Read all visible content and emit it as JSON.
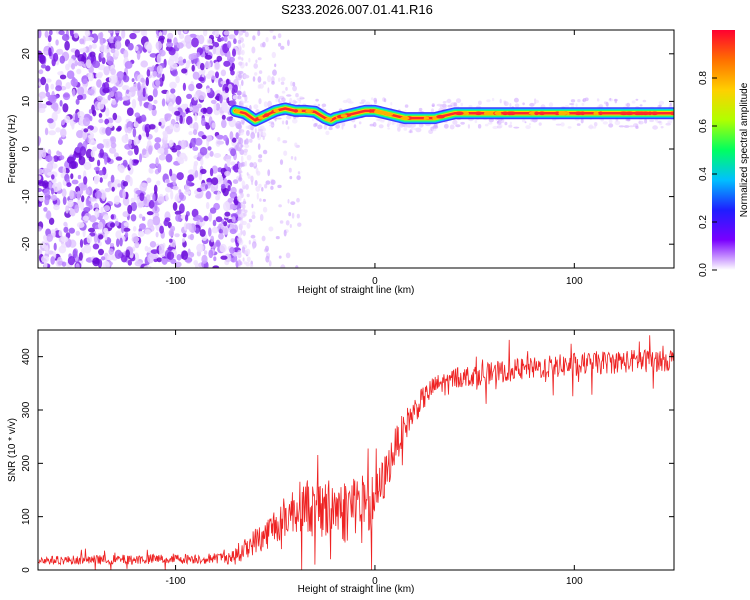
{
  "title": "S233.2026.007.01.41.R16",
  "chart_data": [
    {
      "type": "heatmap",
      "name": "dynamic-spectrum",
      "xlabel": "Height of straight line (km)",
      "ylabel": "Frequency (Hz)",
      "xlim": [
        -169,
        150
      ],
      "ylim": [
        -25,
        25
      ],
      "x_ticks": [
        -100,
        0,
        100
      ],
      "x_tick_labels": [
        "-100",
        "0",
        "100"
      ],
      "y_ticks": [
        -20,
        -10,
        0,
        10,
        20
      ],
      "y_tick_labels": [
        "-20",
        "-10",
        "0",
        "10",
        "20"
      ],
      "noise_region_x": [
        -169,
        -68
      ],
      "signal_start_x": -70,
      "tone_trace": {
        "x": [
          -70,
          -65,
          -60,
          -55,
          -50,
          -45,
          -40,
          -35,
          -30,
          -25,
          -22,
          -20,
          -15,
          -10,
          -5,
          0,
          5,
          10,
          15,
          20,
          25,
          30,
          35,
          40,
          50,
          60,
          70,
          80,
          90,
          100,
          110,
          120,
          130,
          140,
          150
        ],
        "y": [
          8,
          7.5,
          6,
          7,
          8,
          8.5,
          8,
          8,
          7.8,
          6.5,
          6,
          6.5,
          7,
          7.5,
          8,
          8,
          7.5,
          7,
          6.5,
          6.5,
          6.5,
          6.5,
          7,
          7.5,
          7.5,
          7.5,
          7.5,
          7.5,
          7.5,
          7.5,
          7.5,
          7.5,
          7.5,
          7.5,
          7.5
        ]
      }
    },
    {
      "type": "colorbar",
      "name": "amplitude-colorbar",
      "label": "Normalized spectral amplitude",
      "range": [
        0,
        1
      ],
      "ticks": [
        0.0,
        0.2,
        0.4,
        0.6,
        0.8
      ],
      "tick_labels": [
        "0.0",
        "0.2",
        "0.4",
        "0.6",
        "0.8"
      ],
      "colors": [
        "#ffffff",
        "#7a00ff",
        "#1e1eff",
        "#00c0ff",
        "#00ff60",
        "#b0ff00",
        "#ffd000",
        "#ff7000",
        "#ff0030"
      ]
    },
    {
      "type": "line",
      "name": "snr-profile",
      "xlabel": "Height of straight line (km)",
      "ylabel": "SNR (10 * v/v)",
      "xlim": [
        -169,
        150
      ],
      "ylim": [
        0,
        450
      ],
      "x_ticks": [
        -100,
        0,
        100
      ],
      "x_tick_labels": [
        "-100",
        "0",
        "100"
      ],
      "y_ticks": [
        0,
        100,
        200,
        300,
        400
      ],
      "y_tick_labels": [
        "0",
        "100",
        "200",
        "300",
        "400"
      ],
      "color": "#ee2222",
      "envelope": {
        "x": [
          -169,
          -120,
          -80,
          -70,
          -65,
          -60,
          -55,
          -50,
          -45,
          -40,
          -35,
          -30,
          -25,
          -20,
          -15,
          -10,
          -5,
          0,
          5,
          10,
          15,
          20,
          25,
          30,
          40,
          50,
          60,
          70,
          80,
          90,
          100,
          110,
          120,
          130,
          140,
          150
        ],
        "y": [
          18,
          20,
          22,
          25,
          40,
          55,
          65,
          85,
          100,
          115,
          125,
          110,
          115,
          120,
          110,
          130,
          120,
          130,
          175,
          230,
          270,
          300,
          325,
          345,
          360,
          365,
          370,
          375,
          378,
          382,
          385,
          388,
          390,
          392,
          393,
          395
        ]
      },
      "noise_scale": {
        "x": [
          -169,
          -80,
          -70,
          -60,
          -50,
          -40,
          -30,
          -20,
          -10,
          0,
          10,
          20,
          30,
          50,
          100,
          150
        ],
        "y": [
          8,
          10,
          15,
          25,
          35,
          45,
          55,
          60,
          65,
          50,
          35,
          25,
          20,
          20,
          22,
          22
        ]
      }
    }
  ]
}
